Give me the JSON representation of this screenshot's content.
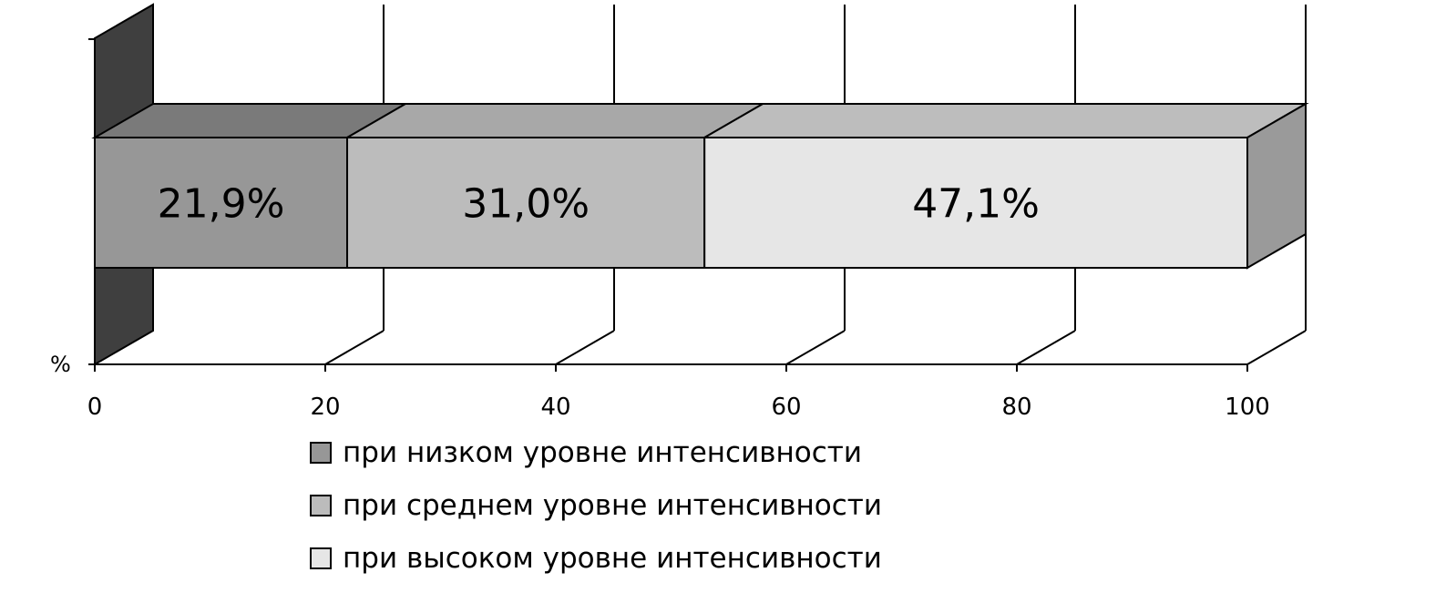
{
  "chart_data": {
    "type": "bar",
    "orientation": "horizontal",
    "stacked": true,
    "three_d": true,
    "y_axis_unit_label": "%",
    "x_ticks": [
      "0",
      "20",
      "40",
      "60",
      "80",
      "100"
    ],
    "xlim": [
      0,
      100
    ],
    "grid": true,
    "series": [
      {
        "name": "при низком уровне интенсивности",
        "value": 21.9,
        "label": "21,9%",
        "color": "#979797",
        "top_color": "#7a7a7a"
      },
      {
        "name": "при среднем уровне интенсивности",
        "value": 31.0,
        "label": "31,0%",
        "color": "#bcbcbc",
        "top_color": "#a8a8a8"
      },
      {
        "name": "при высоком уровне интенсивности",
        "value": 47.1,
        "label": "47,1%",
        "color": "#e6e6e6",
        "top_color": "#bdbdbd"
      }
    ],
    "legend_position": "bottom"
  }
}
